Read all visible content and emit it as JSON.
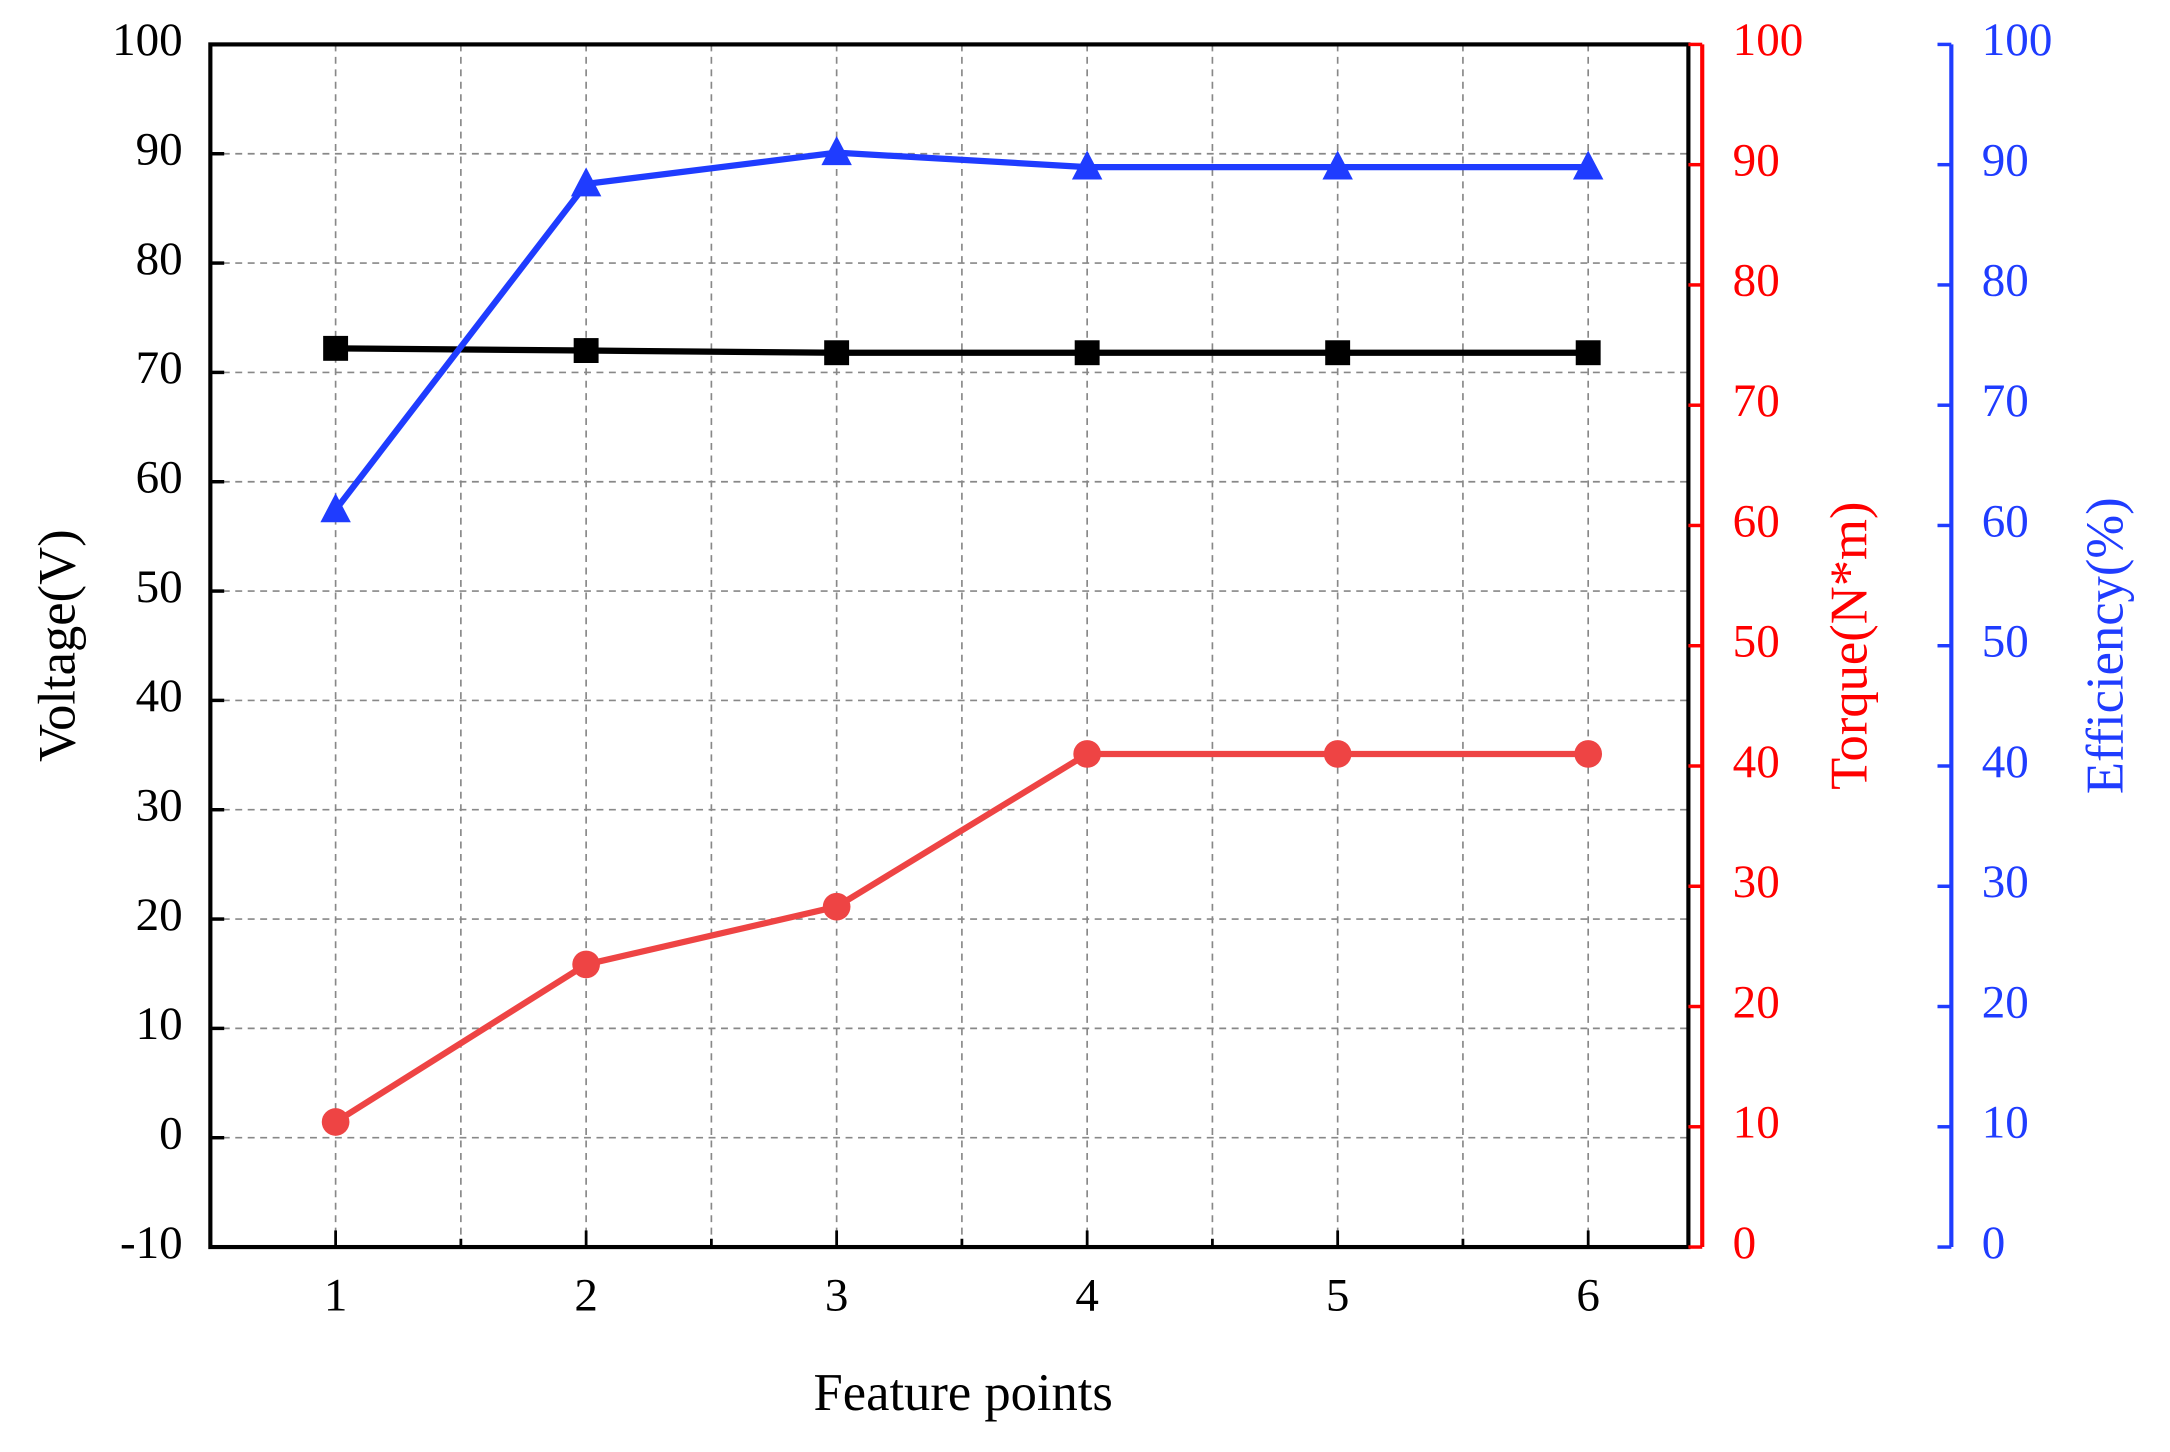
{
  "chart_data": {
    "type": "line",
    "x_label": "Feature points",
    "x": [
      1,
      2,
      3,
      4,
      5,
      6
    ],
    "xlim": [
      0.5,
      6.4
    ],
    "xticks": [
      1,
      2,
      3,
      4,
      5,
      6
    ],
    "grid": true,
    "axes": [
      {
        "label": "Voltage(V)",
        "color": "#000000",
        "lim": [
          -10,
          100
        ],
        "ticks": [
          -10,
          0,
          10,
          20,
          30,
          40,
          50,
          60,
          70,
          80,
          90,
          100
        ]
      },
      {
        "label": "Torque(N*m)",
        "color": "#ff0000",
        "lim": [
          0,
          100
        ],
        "ticks": [
          0,
          10,
          20,
          30,
          40,
          50,
          60,
          70,
          80,
          90,
          100
        ]
      },
      {
        "label": "Efficiency(%)",
        "color": "#1f3cff",
        "lim": [
          0,
          100
        ],
        "ticks": [
          0,
          10,
          20,
          30,
          40,
          50,
          60,
          70,
          80,
          90,
          100
        ]
      }
    ],
    "series": [
      {
        "axis": 0,
        "color": "#000000",
        "marker": "square",
        "values": [
          72.2,
          72.0,
          71.8,
          71.8,
          71.8,
          71.8
        ]
      },
      {
        "axis": 1,
        "color": "#ee4444",
        "marker": "circle",
        "values": [
          10.4,
          23.5,
          28.3,
          41.0,
          41.0,
          41.0
        ]
      },
      {
        "axis": 2,
        "color": "#1f3cff",
        "marker": "triangle",
        "values": [
          61.3,
          88.4,
          91.0,
          89.8,
          89.8,
          89.8
        ]
      }
    ]
  }
}
